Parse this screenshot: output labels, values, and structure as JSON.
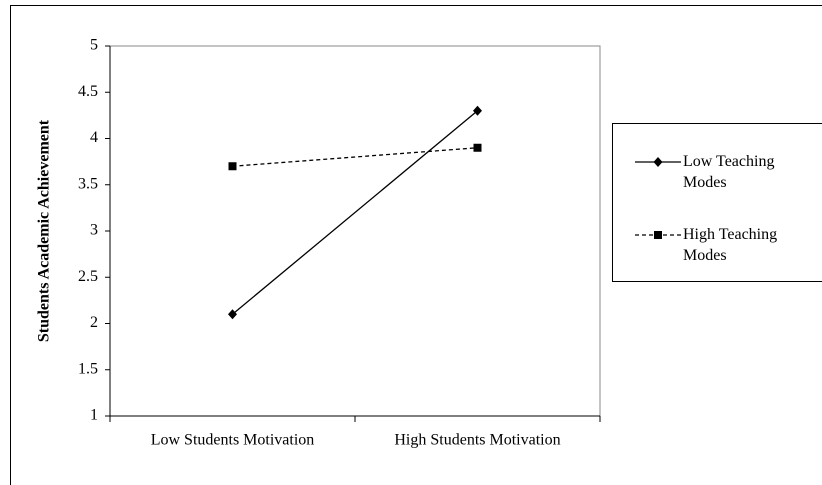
{
  "chart_data": {
    "type": "line",
    "y_label": "Students Academic Achievement",
    "categories": [
      "Low Students Motivation",
      "High Students Motivation"
    ],
    "series": [
      {
        "name": "Low Teaching Modes",
        "color": "#000000",
        "dash": false,
        "marker": "diamond",
        "values": [
          2.1,
          4.3
        ]
      },
      {
        "name": "High Teaching Modes",
        "color": "#000000",
        "dash": true,
        "marker": "square",
        "values": [
          3.7,
          3.9
        ]
      }
    ],
    "ylim": [
      1,
      5
    ],
    "yticks": [
      1,
      1.5,
      2,
      2.5,
      3,
      3.5,
      4,
      4.5,
      5
    ],
    "grid": false,
    "legend": "right"
  }
}
